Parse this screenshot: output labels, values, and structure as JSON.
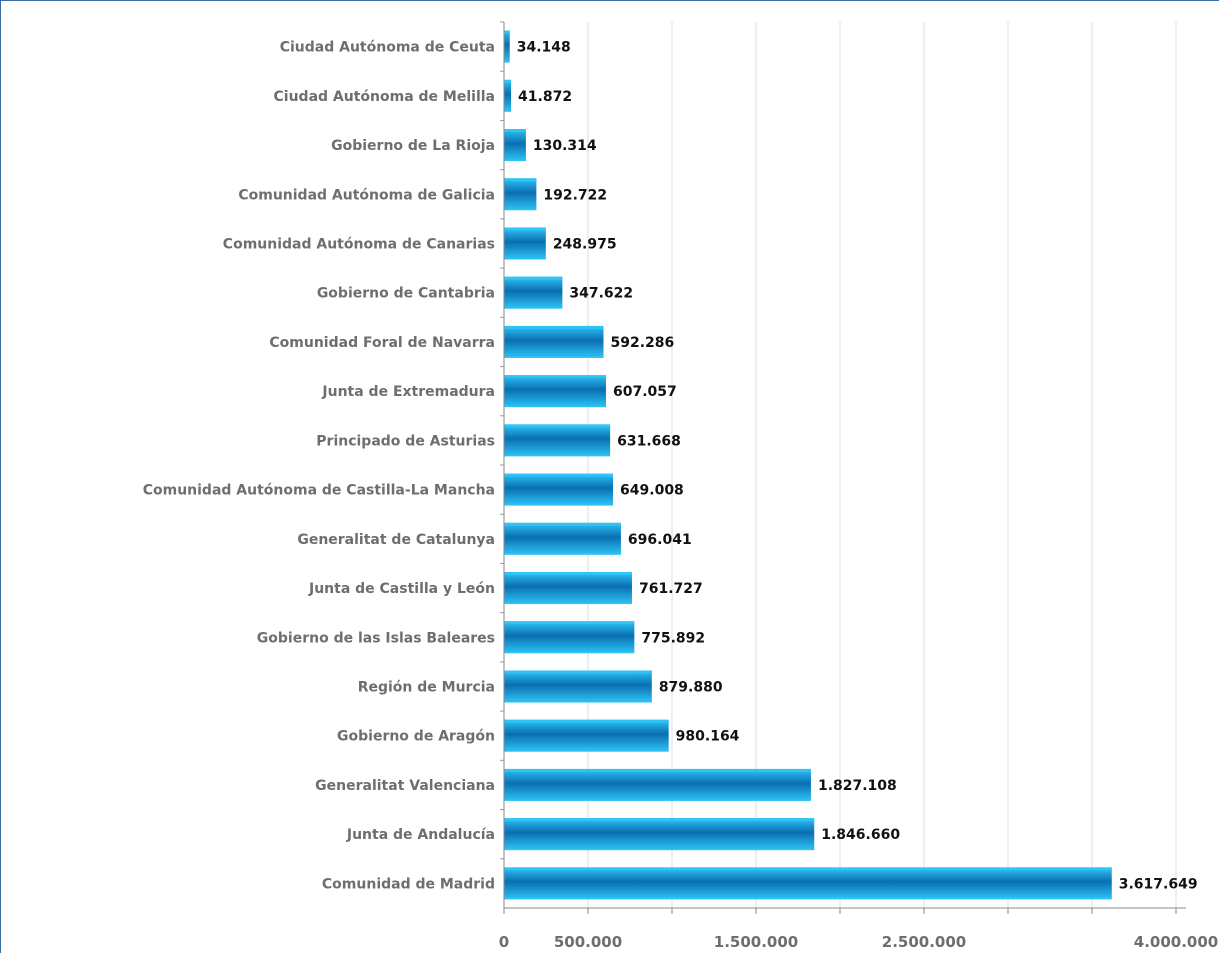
{
  "chart_data": {
    "type": "bar",
    "orientation": "horizontal",
    "categories": [
      "Ciudad Autónoma de Ceuta",
      "Ciudad Autónoma de Melilla",
      "Gobierno de La Rioja",
      "Comunidad Autónoma de Galicia",
      "Comunidad Autónoma de Canarias",
      "Gobierno de Cantabria",
      "Comunidad Foral de Navarra",
      "Junta de Extremadura",
      "Principado de Asturias",
      "Comunidad Autónoma de Castilla-La Mancha",
      "Generalitat de Catalunya",
      "Junta de Castilla y León",
      "Gobierno de las Islas Baleares",
      "Región de Murcia",
      "Gobierno de Aragón",
      "Generalitat Valenciana",
      "Junta de Andalucía",
      "Comunidad de Madrid"
    ],
    "values": [
      34148,
      41872,
      130314,
      192722,
      248975,
      347622,
      592286,
      607057,
      631668,
      649008,
      696041,
      761727,
      775892,
      879880,
      980164,
      1827108,
      1846660,
      3617649
    ],
    "value_labels": [
      "34.148",
      "41.872",
      "130.314",
      "192.722",
      "248.975",
      "347.622",
      "592.286",
      "607.057",
      "631.668",
      "649.008",
      "696.041",
      "761.727",
      "775.892",
      "879.880",
      "980.164",
      "1.827.108",
      "1.846.660",
      "3.617.649"
    ],
    "xlim": [
      0,
      4000000
    ],
    "x_ticks": [
      0,
      500000,
      1000000,
      1500000,
      2000000,
      2500000,
      3000000,
      3500000,
      4000000
    ],
    "x_tick_labels": [
      "0",
      "500.000",
      "",
      "1.500.000",
      "",
      "2.500.000",
      "",
      "",
      "4.000.000"
    ],
    "grid": true,
    "colors": {
      "bar_light": "#2ec4f7",
      "bar_mid": "#0a9ee0",
      "bar_dark": "#0a6fb0",
      "grid": "#dddddd",
      "frame": "#3b6ea8"
    }
  }
}
